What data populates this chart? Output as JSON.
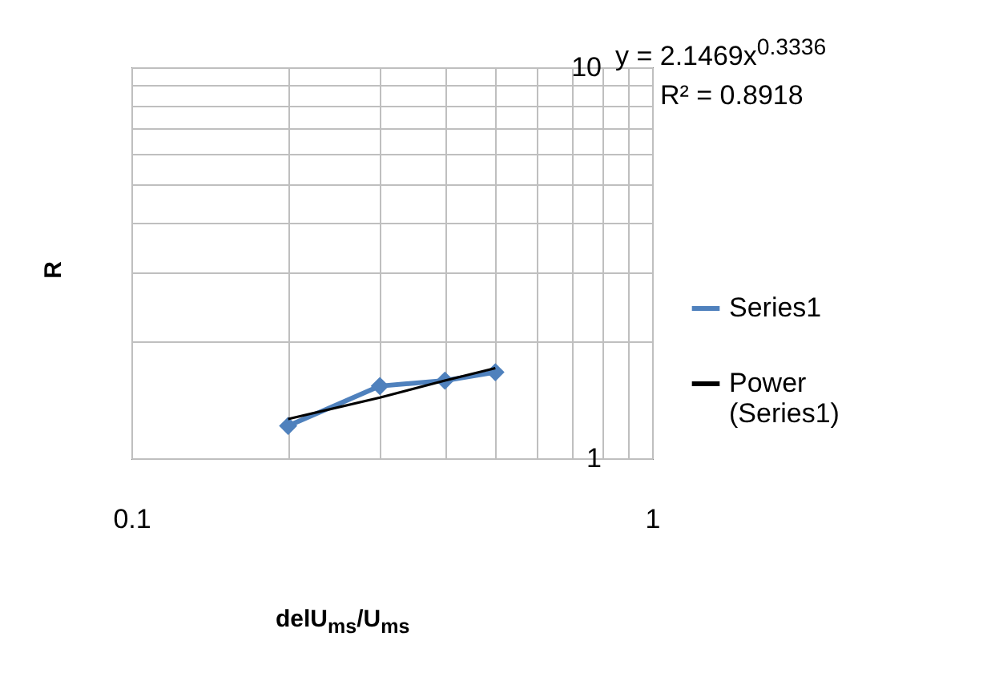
{
  "chart_data": {
    "type": "line",
    "xlabel": "delU$_{ms}$/U$_{ms}$",
    "ylabel": "R",
    "annotations": [
      "y = 2.1469x$^{0.3336}$",
      "R² = 0.8918"
    ],
    "series": [
      {
        "name": "Series1",
        "color": "#4f81bd",
        "x": [
          0.2,
          0.3,
          0.4,
          0.5
        ],
        "values": [
          1.21,
          1.53,
          1.58,
          1.66
        ]
      },
      {
        "name": "Power (Series1)",
        "color": "#000000",
        "type": "line",
        "x": [
          0.2,
          0.3,
          0.4,
          0.5
        ],
        "values": [
          1.26,
          1.43,
          1.58,
          1.7
        ],
        "marker": "none"
      }
    ],
    "xlim": [
      0.1,
      1
    ],
    "ylim": [
      1,
      10
    ],
    "xticks": [
      0.1,
      {
        "value": 0.2,
        "label": null
      },
      {
        "value": 0.3,
        "label": null
      },
      {
        "value": 0.4,
        "label": null
      },
      {
        "value": 0.5,
        "label": null
      },
      {
        "value": 0.6,
        "label": null
      },
      {
        "value": 0.7,
        "label": null
      },
      {
        "value": 0.8,
        "label": null
      },
      {
        "value": 0.9,
        "label": null
      },
      1
    ],
    "yticks": [
      1,
      {
        "value": 2,
        "label": null
      },
      {
        "value": 3,
        "label": null
      },
      {
        "value": 4,
        "label": null
      },
      {
        "value": 5,
        "label": null
      },
      {
        "value": 6,
        "label": null
      },
      {
        "value": 7,
        "label": null
      },
      {
        "value": 8,
        "label": null
      },
      {
        "value": 9,
        "label": null
      },
      10
    ],
    "log": "xy",
    "grid": true,
    "legend": "right",
    "marker": "diamond"
  }
}
